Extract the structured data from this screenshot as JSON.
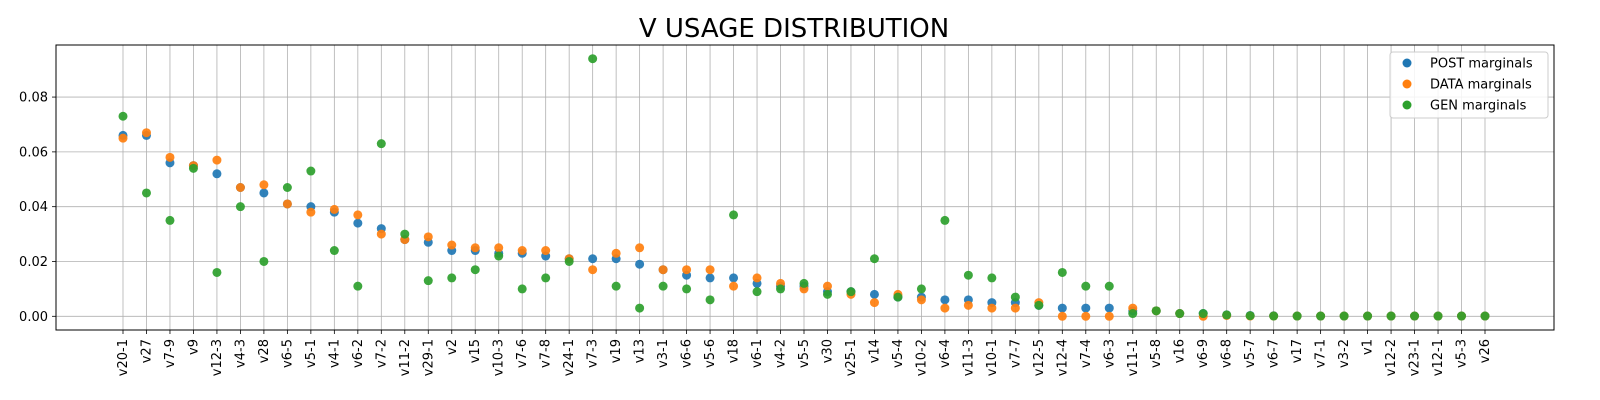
{
  "chart_data": {
    "type": "scatter",
    "title": "V USAGE DISTRIBUTION",
    "xlabel": "",
    "ylabel": "",
    "ylim": [
      -0.005,
      0.099
    ],
    "yticks": [
      "0.00",
      "0.02",
      "0.04",
      "0.06",
      "0.08"
    ],
    "grid": true,
    "legend_position": "top-right",
    "categories": [
      "v20-1",
      "v27",
      "v7-9",
      "v9",
      "v12-3",
      "v4-3",
      "v28",
      "v6-5",
      "v5-1",
      "v4-1",
      "v6-2",
      "v7-2",
      "v11-2",
      "v29-1",
      "v2",
      "v15",
      "v10-3",
      "v7-6",
      "v7-8",
      "v24-1",
      "v7-3",
      "v19",
      "v13",
      "v3-1",
      "v6-6",
      "v5-6",
      "v18",
      "v6-1",
      "v4-2",
      "v5-5",
      "v30",
      "v25-1",
      "v14",
      "v5-4",
      "v10-2",
      "v6-4",
      "v11-3",
      "v10-1",
      "v7-7",
      "v12-5",
      "v12-4",
      "v7-4",
      "v6-3",
      "v11-1",
      "v5-8",
      "v16",
      "v6-9",
      "v6-8",
      "v5-7",
      "v6-7",
      "v17",
      "v7-1",
      "v3-2",
      "v1",
      "v12-2",
      "v23-1",
      "v12-1",
      "v5-3",
      "v26"
    ],
    "series": [
      {
        "name": "POST marginals",
        "color": "#1f77b4",
        "values": [
          0.066,
          0.066,
          0.056,
          0.055,
          0.052,
          0.047,
          0.045,
          0.041,
          0.04,
          0.038,
          0.034,
          0.032,
          0.028,
          0.027,
          0.024,
          0.024,
          0.023,
          0.023,
          0.022,
          0.021,
          0.021,
          0.021,
          0.019,
          0.017,
          0.015,
          0.014,
          0.014,
          0.012,
          0.011,
          0.011,
          0.009,
          0.009,
          0.008,
          0.007,
          0.007,
          0.006,
          0.006,
          0.005,
          0.005,
          0.004,
          0.003,
          0.003,
          0.003,
          0.002,
          0.002,
          0.001,
          0.001,
          0.0005,
          0.0003,
          0.0002,
          0.0001,
          0.0001,
          0.0001,
          0.0001,
          0.0001,
          0.0001,
          0.0001,
          0.0001,
          0.0001
        ]
      },
      {
        "name": "DATA marginals",
        "color": "#ff7f0e",
        "values": [
          0.065,
          0.067,
          0.058,
          0.055,
          0.057,
          0.047,
          0.048,
          0.041,
          0.038,
          0.039,
          0.037,
          0.03,
          0.028,
          0.029,
          0.026,
          0.025,
          0.025,
          0.024,
          0.024,
          0.021,
          0.017,
          0.023,
          0.025,
          0.017,
          0.017,
          0.017,
          0.011,
          0.014,
          0.012,
          0.01,
          0.011,
          0.008,
          0.005,
          0.008,
          0.006,
          0.003,
          0.004,
          0.003,
          0.003,
          0.005,
          0.0,
          0.0,
          0.0,
          0.003,
          0.002,
          0.001,
          0.0,
          0.0003,
          0.0001,
          0.0001,
          0.0001,
          0.0001,
          0.0001,
          0.0001,
          0.0001,
          0.0001,
          0.0001,
          0.0001,
          0.0001
        ]
      },
      {
        "name": "GEN marginals",
        "color": "#2ca02c",
        "values": [
          0.073,
          0.045,
          0.035,
          0.054,
          0.016,
          0.04,
          0.02,
          0.047,
          0.053,
          0.024,
          0.011,
          0.063,
          0.03,
          0.013,
          0.014,
          0.017,
          0.022,
          0.01,
          0.014,
          0.02,
          0.094,
          0.011,
          0.003,
          0.011,
          0.01,
          0.006,
          0.037,
          0.009,
          0.01,
          0.012,
          0.008,
          0.009,
          0.021,
          0.007,
          0.01,
          0.035,
          0.015,
          0.014,
          0.007,
          0.004,
          0.016,
          0.011,
          0.011,
          0.001,
          0.002,
          0.001,
          0.001,
          0.0005,
          0.0002,
          0.0001,
          0.0001,
          0.0001,
          0.0001,
          0.0001,
          0.0001,
          0.0001,
          0.0001,
          0.0001,
          0.0001
        ]
      }
    ]
  }
}
